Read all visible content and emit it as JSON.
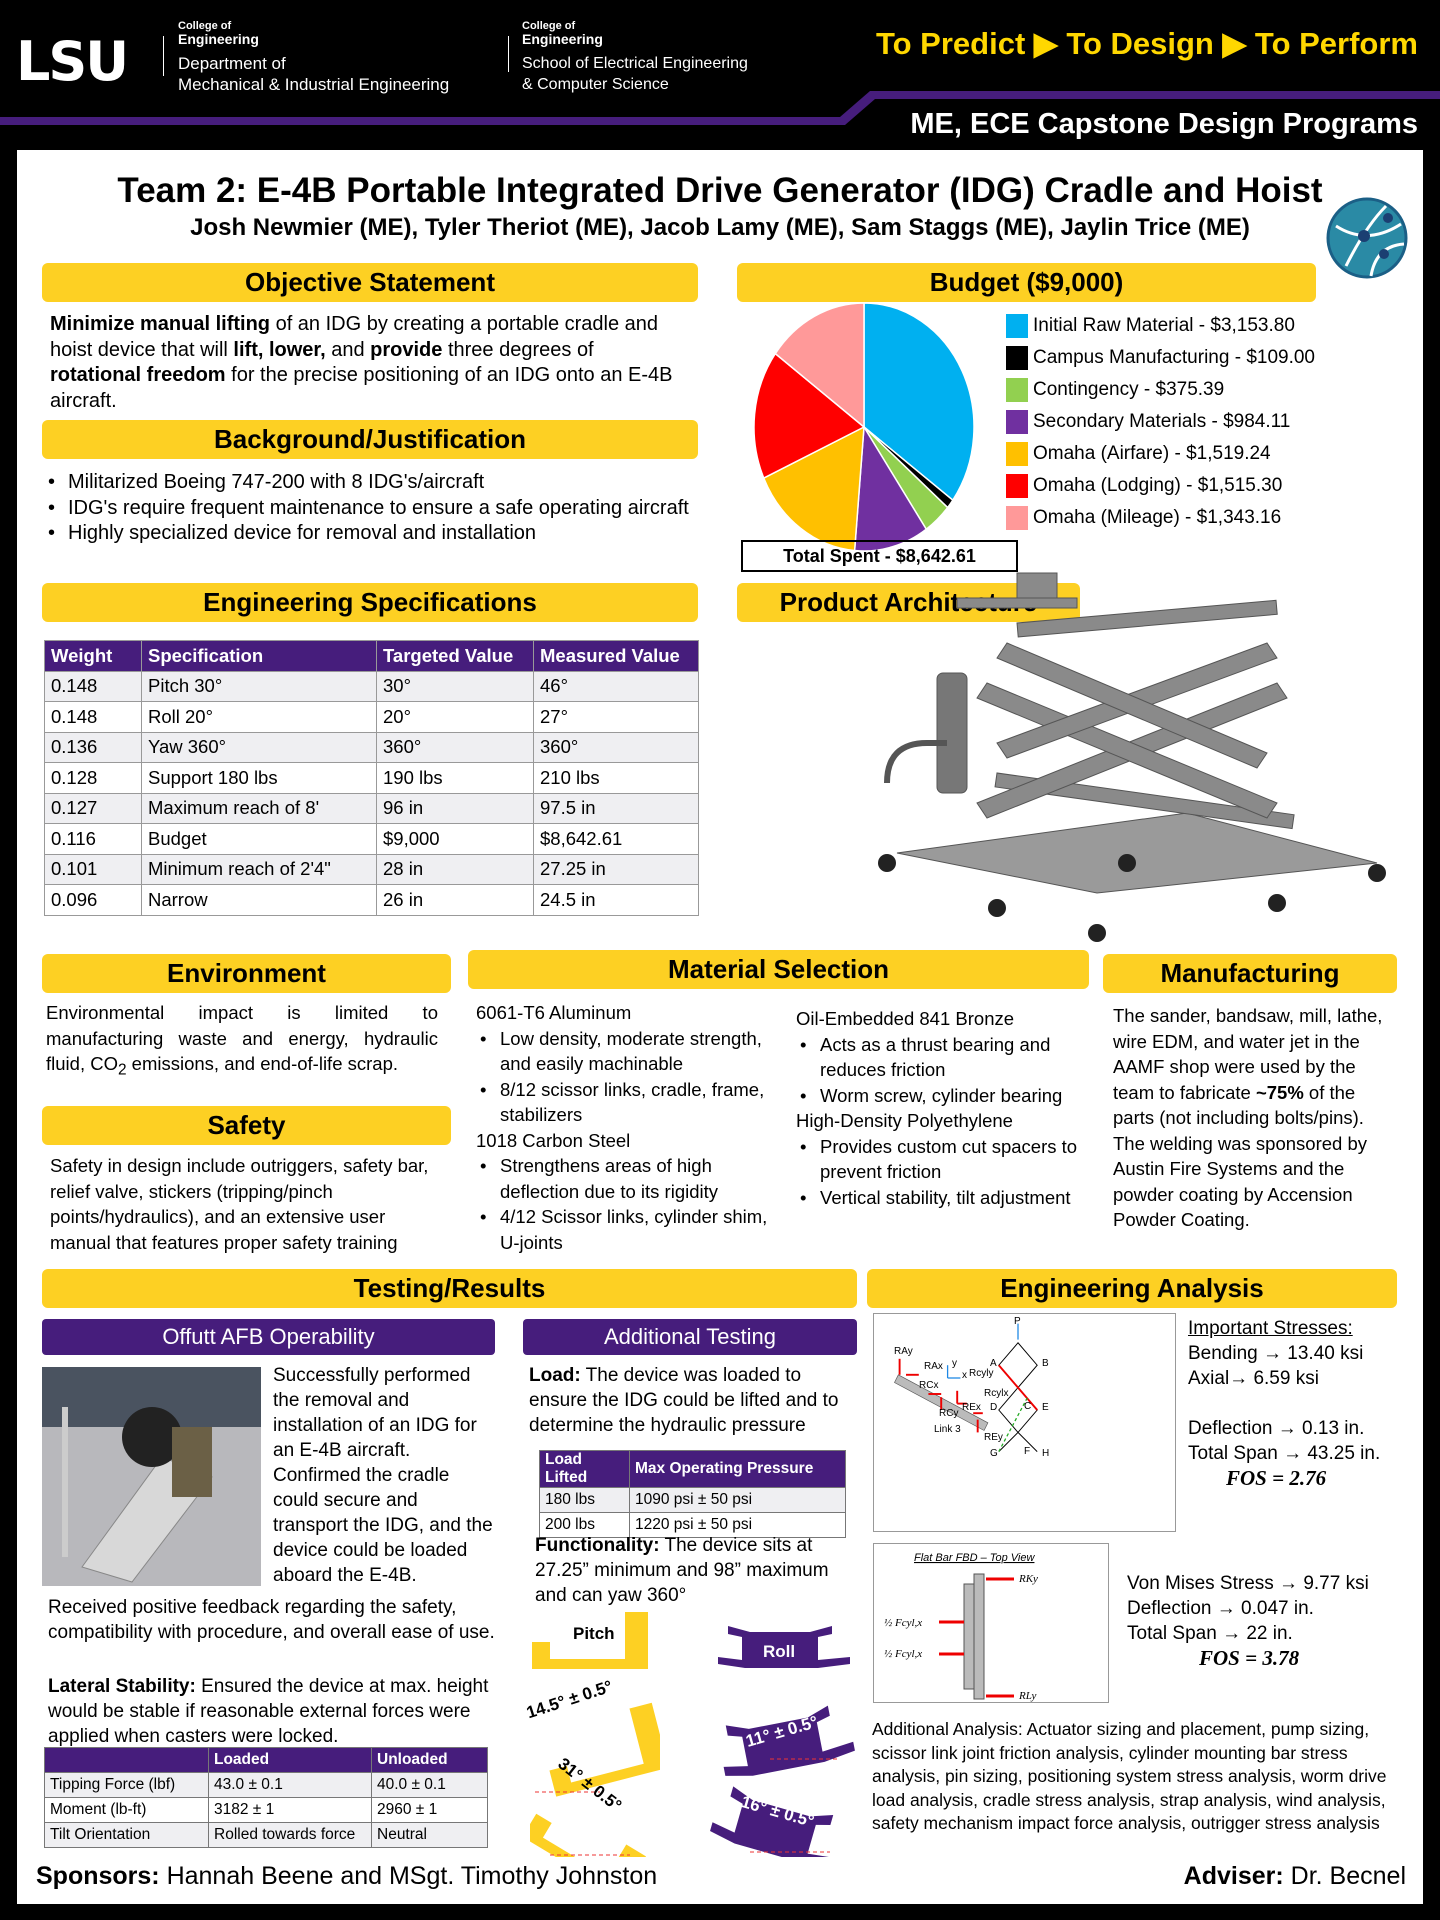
{
  "header": {
    "logo": "LSU",
    "college_1": "College of",
    "college_2": "Engineering",
    "dept_1": "Department of",
    "dept_2": "Mechanical & Industrial Engineering",
    "college_b1": "College of",
    "college_b2": "Engineering",
    "school_1": "School of Electrical Engineering",
    "school_2": "& Computer Science",
    "tagline": "To Predict ▶ To Design ▶ To Perform",
    "programs": "ME, ECE Capstone Design Programs",
    "purple": "#461D7C",
    "gold": "#FDD023"
  },
  "title": "Team 2: E-4B Portable Integrated Drive Generator (IDG) Cradle and Hoist",
  "authors": "Josh Newmier (ME), Tyler Theriot (ME), Jacob Lamy (ME), Sam Staggs (ME), Jaylin Trice (ME)",
  "objective": {
    "heading": "Objective Statement",
    "b1": "Minimize manual lifting",
    "t1": " of an IDG by creating a portable cradle and hoist device that will ",
    "b2": "lift, lower,",
    "t2": " and ",
    "b3": "provide",
    "t3": " three degrees of ",
    "b4": "rotational freedom",
    "t4": " for the precise positioning of an IDG onto an E-4B aircraft."
  },
  "background": {
    "heading": "Background/Justification",
    "items": [
      "Militarized Boeing 747-200 with 8 IDG's/aircraft",
      "IDG's require frequent maintenance to ensure a safe operating aircraft",
      "Highly specialized device for removal and installation"
    ]
  },
  "specs": {
    "heading": "Engineering Specifications",
    "columns": [
      "Weight",
      "Specification",
      "Targeted Value",
      "Measured Value"
    ],
    "rows": [
      [
        "0.148",
        "Pitch 30°",
        "30°",
        "46°"
      ],
      [
        "0.148",
        "Roll 20°",
        "20°",
        "27°"
      ],
      [
        "0.136",
        "Yaw 360°",
        "360°",
        "360°"
      ],
      [
        "0.128",
        "Support 180 lbs",
        "190 lbs",
        "210 lbs"
      ],
      [
        "0.127",
        "Maximum reach of 8'",
        "96 in",
        "97.5 in"
      ],
      [
        "0.116",
        "Budget",
        "$9,000",
        "$8,642.61"
      ],
      [
        "0.101",
        "Minimum reach of 2'4\"",
        "28 in",
        "27.25 in"
      ],
      [
        "0.096",
        "Narrow",
        "26 in",
        "24.5 in"
      ]
    ]
  },
  "budget": {
    "heading": "Budget ($9,000)",
    "total": "Total Spent - $8,642.61"
  },
  "chart_data": {
    "type": "pie",
    "title": "Budget ($9,000)",
    "slices": [
      {
        "label": "Initial Raw Material - $3,153.80",
        "value": 3153.8,
        "color": "#00B0F0"
      },
      {
        "label": "Campus Manufacturing - $109.00",
        "value": 109.0,
        "color": "#000000"
      },
      {
        "label": "Contingency - $375.39",
        "value": 375.39,
        "color": "#92D050"
      },
      {
        "label": "Secondary Materials - $984.11",
        "value": 984.11,
        "color": "#7030A0"
      },
      {
        "label": "Omaha (Airfare) - $1,519.24",
        "value": 1519.24,
        "color": "#FFC000"
      },
      {
        "label": "Omaha (Lodging) - $1,515.30",
        "value": 1515.3,
        "color": "#FF0000"
      },
      {
        "label": "Omaha (Mileage) - $1,343.16",
        "value": 1343.16,
        "color": "#FF9999"
      }
    ],
    "legend": "right"
  },
  "architecture": {
    "heading": "Product Architecture"
  },
  "environment": {
    "heading": "Environment",
    "text_a": "Environmental impact is limited to manufacturing waste and energy, hydraulic fluid, CO",
    "sub": "2",
    "text_b": " emissions, and end-of-life scrap."
  },
  "safety": {
    "heading": "Safety",
    "text": "Safety in design include outriggers, safety bar, relief valve, stickers (tripping/pinch points/hydraulics), and an extensive user manual that features proper safety training"
  },
  "materials": {
    "heading": "Material Selection",
    "col1": [
      {
        "name": "6061-T6 Aluminum",
        "items": [
          "Low density, moderate strength, and easily machinable",
          "8/12 scissor links, cradle, frame, stabilizers"
        ]
      },
      {
        "name": "1018 Carbon Steel",
        "items": [
          "Strengthens areas of high deflection due to its rigidity",
          "4/12 Scissor links, cylinder shim, U-joints"
        ]
      }
    ],
    "col2": [
      {
        "name": "Oil-Embedded 841 Bronze",
        "items": [
          "Acts as a thrust bearing and reduces friction",
          "Worm screw, cylinder bearing"
        ]
      },
      {
        "name": "High-Density Polyethylene",
        "items": [
          "Provides custom cut spacers to prevent friction",
          "Vertical stability, tilt adjustment"
        ]
      }
    ]
  },
  "manufacturing": {
    "heading": "Manufacturing",
    "t1": "The sander, bandsaw, mill, lathe, wire EDM, and water jet in the AAMF shop were used by the team to fabricate ",
    "b1": "~75%",
    "t2": " of the parts (not including bolts/pins). The welding was sponsored by Austin Fire Systems and the powder coating by Accension Powder Coating."
  },
  "testing": {
    "heading": "Testing/Results",
    "offutt": {
      "heading": "Offutt AFB Operability",
      "text1": "Successfully performed the removal and installation of an IDG for an E-4B aircraft. Confirmed the cradle could secure and transport the IDG, and the device could be loaded aboard the E-4B.",
      "text2": "Received positive feedback regarding the safety, compatibility with procedure, and overall ease of use.",
      "lat_b": "Lateral Stability:",
      "lat_t": " Ensured the device at max. height would be stable if reasonable external forces were applied when casters were locked.",
      "table": {
        "columns": [
          "",
          "Loaded",
          "Unloaded"
        ],
        "rows": [
          [
            "Tipping Force (lbf)",
            "43.0 ± 0.1",
            "40.0 ± 0.1"
          ],
          [
            "Moment (lb-ft)",
            "3182 ± 1",
            "2960 ± 1"
          ],
          [
            "Tilt Orientation",
            "Rolled towards force",
            "Neutral"
          ]
        ]
      }
    },
    "additional": {
      "heading": "Additional Testing",
      "load_b": "Load:",
      "load_t": " The device was loaded to ensure the IDG could be lifted and to determine the hydraulic pressure",
      "table": {
        "columns": [
          "Load Lifted",
          "Max Operating Pressure"
        ],
        "rows": [
          [
            "180 lbs",
            "1090 psi ± 50 psi"
          ],
          [
            "200 lbs",
            "1220 psi ± 50 psi"
          ]
        ]
      },
      "func_b": "Functionality:",
      "func_t": " The device sits at 27.25” minimum and 98” maximum and can yaw 360°",
      "pitch_label": "Pitch",
      "roll_label": "Roll",
      "pitch_angles": [
        "14.5° ± 0.5°",
        "31° ± 0.5°"
      ],
      "roll_angles": [
        "11° ± 0.5°",
        "16° ± 0.5°"
      ]
    }
  },
  "analysis": {
    "heading": "Engineering Analysis",
    "stresses_title": "Important Stresses:",
    "lines1": [
      "Bending → 13.40 ksi",
      "Axial→ 6.59 ksi",
      "",
      "Deflection → 0.13 in.",
      "Total Span → 43.25 in."
    ],
    "fos1": "FOS = 2.76",
    "diagram1": {
      "link_label": "Link 3",
      "nodes": [
        "P",
        "A",
        "B",
        "C",
        "D",
        "E",
        "F",
        "G",
        "H"
      ],
      "members": [
        "1",
        "2",
        "3",
        "4",
        "5",
        "6"
      ],
      "forces": [
        "RAy",
        "RAx",
        "Rcyly",
        "Rcylx",
        "RCx",
        "RCy",
        "REx",
        "REy"
      ],
      "axes": [
        "y",
        "x"
      ]
    },
    "diagram2": {
      "title": "Flat Bar FBD – Top View",
      "forces": [
        "RKy",
        "½ Fcyl,x",
        "½ Fcyl,x",
        "RLy"
      ]
    },
    "lines2": [
      "Von Mises Stress → 9.77 ksi",
      "Deflection → 0.047 in.",
      "Total Span → 22 in."
    ],
    "fos2": "FOS = 3.78",
    "additional": "Additional Analysis: Actuator sizing and placement, pump sizing, scissor link joint friction analysis, cylinder mounting bar stress analysis, pin sizing, positioning system stress analysis, worm drive load analysis, cradle stress analysis, strap analysis, wind analysis, safety mechanism impact force analysis, outrigger stress analysis"
  },
  "footer": {
    "sponsors_label": "Sponsors:",
    "sponsors": " Hannah Beene and MSgt. Timothy Johnston",
    "adviser_label": "Adviser:",
    "adviser": " Dr. Becnel"
  }
}
